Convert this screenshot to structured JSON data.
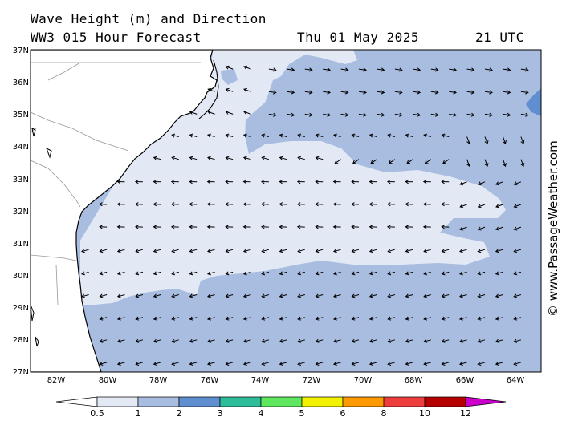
{
  "header": {
    "title": "Wave Height (m) and Direction",
    "model": "WW3 015 Hour Forecast",
    "date": "Thu 01 May 2025",
    "time": "21 UTC"
  },
  "credit": "© www.PassageWeather.com",
  "axes": {
    "lat_labels": [
      "37N",
      "36N",
      "35N",
      "34N",
      "33N",
      "32N",
      "31N",
      "30N",
      "29N",
      "28N",
      "27N"
    ],
    "lon_labels": [
      "82W",
      "80W",
      "78W",
      "76W",
      "74W",
      "72W",
      "70W",
      "68W",
      "66W",
      "64W"
    ]
  },
  "legend": {
    "labels": [
      "0.5",
      "1",
      "2",
      "3",
      "4",
      "5",
      "6",
      "8",
      "10",
      "12"
    ],
    "colors": [
      "#e3e8f5",
      "#a9bde0",
      "#5f8fd0",
      "#2ebd9b",
      "#5fe85f",
      "#f2f200",
      "#ff9900",
      "#ee3d3d",
      "#b50000",
      "#cc00cc"
    ]
  },
  "colors": {
    "land": "#ffffff",
    "sea_low": "#e3e8f5",
    "sea_mid": "#a9bde0",
    "sea_high": "#5f8fd0"
  },
  "arrow_grid": {
    "lon_start": -81.5,
    "lon_step": 0.67,
    "cols": 26,
    "lat_start": 27.3,
    "lat_step": 0.7,
    "rows": 14
  }
}
